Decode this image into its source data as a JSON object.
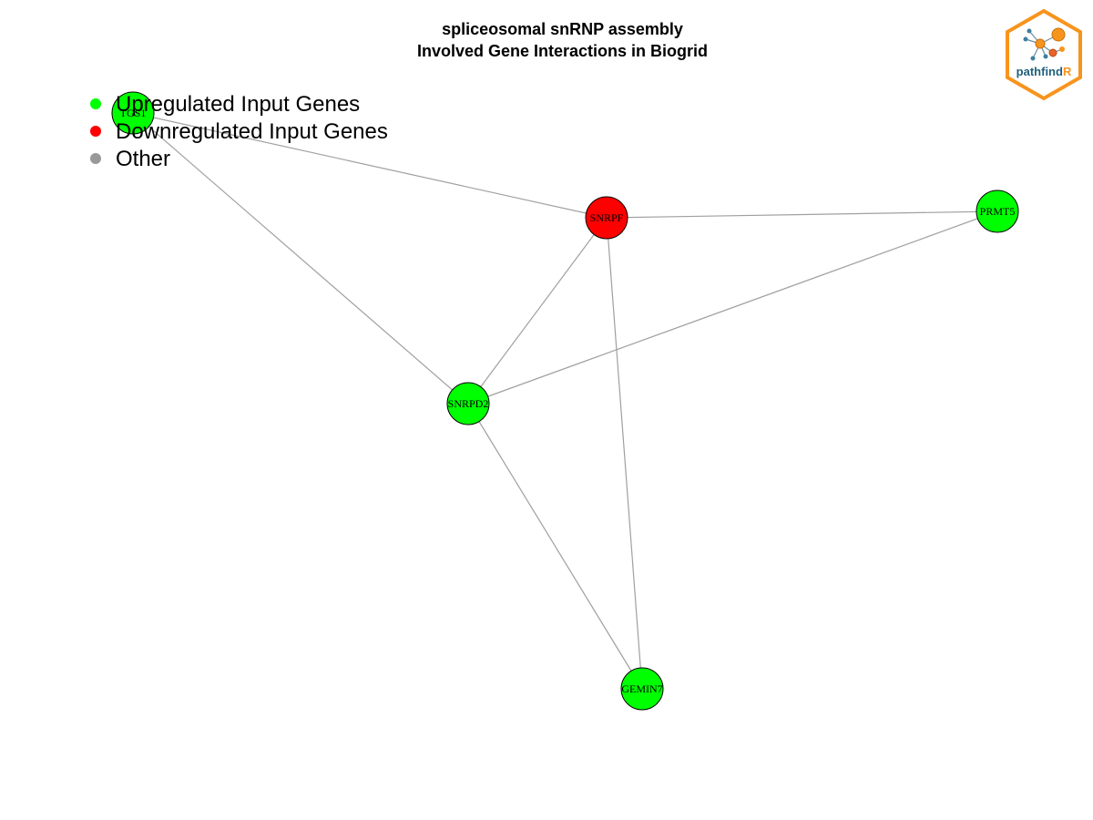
{
  "title": {
    "line1": "spliceosomal snRNP assembly",
    "line2": "Involved Gene Interactions in Biogrid"
  },
  "legend": [
    {
      "label": "Upregulated Input Genes",
      "color": "#00ff00"
    },
    {
      "label": "Downregulated Input Genes",
      "color": "#ff0000"
    },
    {
      "label": "Other",
      "color": "#999999"
    }
  ],
  "logo": {
    "text_main": "pathfind",
    "text_accent": "R",
    "accent_color": "#f7941d",
    "main_color": "#1f5f7a"
  },
  "nodes": [
    {
      "id": "TGS1",
      "label": "TGS1",
      "color": "#00ff00"
    },
    {
      "id": "SNRPF",
      "label": "SNRPF",
      "color": "#ff0000"
    },
    {
      "id": "PRMT5",
      "label": "PRMT5",
      "color": "#00ff00"
    },
    {
      "id": "SNRPD2",
      "label": "SNRPD2",
      "color": "#00ff00"
    },
    {
      "id": "GEMIN7",
      "label": "GEMIN7",
      "color": "#00ff00"
    }
  ],
  "edges": [
    [
      "TGS1",
      "SNRPF"
    ],
    [
      "TGS1",
      "SNRPD2"
    ],
    [
      "SNRPF",
      "PRMT5"
    ],
    [
      "SNRPF",
      "SNRPD2"
    ],
    [
      "SNRPF",
      "GEMIN7"
    ],
    [
      "PRMT5",
      "SNRPD2"
    ],
    [
      "SNRPD2",
      "GEMIN7"
    ]
  ],
  "edge_color": "#a0a0a0"
}
